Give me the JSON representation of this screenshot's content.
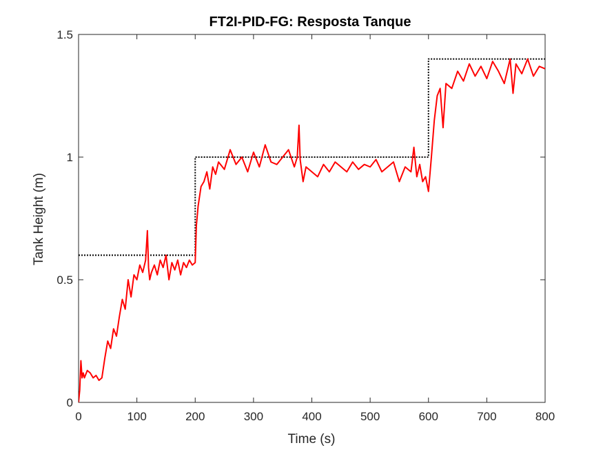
{
  "chart_data": {
    "type": "line",
    "title": "FT2I-PID-FG: Resposta Tanque",
    "xlabel": "Time (s)",
    "ylabel": "Tank Height (m)",
    "xlim": [
      0,
      800
    ],
    "ylim": [
      0,
      1.5
    ],
    "xticks": [
      0,
      100,
      200,
      300,
      400,
      500,
      600,
      700,
      800
    ],
    "xtick_labels": [
      "0",
      "100",
      "200",
      "300",
      "400",
      "500",
      "600",
      "700",
      "800"
    ],
    "yticks": [
      0,
      0.5,
      1,
      1.5
    ],
    "ytick_labels": [
      "0",
      "0.5",
      "1",
      "1.5"
    ],
    "grid": false,
    "legend": "none",
    "series": [
      {
        "style": "dotted",
        "color": "#000000",
        "x": [
          0,
          200,
          200,
          600,
          600,
          800
        ],
        "y": [
          0.6,
          0.6,
          1.0,
          1.0,
          1.4,
          1.4
        ]
      },
      {
        "style": "solid",
        "color": "#ff0000",
        "x": [
          0,
          2,
          4,
          6,
          8,
          10,
          15,
          20,
          25,
          30,
          35,
          40,
          45,
          50,
          55,
          60,
          65,
          70,
          75,
          80,
          85,
          90,
          95,
          100,
          105,
          110,
          115,
          118,
          120,
          122,
          125,
          130,
          135,
          140,
          145,
          150,
          155,
          160,
          165,
          170,
          175,
          180,
          185,
          190,
          195,
          200,
          202,
          205,
          210,
          215,
          220,
          225,
          230,
          235,
          240,
          250,
          260,
          270,
          280,
          290,
          300,
          310,
          320,
          330,
          340,
          350,
          360,
          370,
          375,
          378,
          380,
          385,
          390,
          400,
          410,
          420,
          430,
          440,
          450,
          460,
          470,
          480,
          490,
          500,
          510,
          520,
          530,
          540,
          550,
          560,
          570,
          575,
          580,
          585,
          590,
          595,
          600,
          605,
          610,
          615,
          620,
          625,
          630,
          640,
          650,
          660,
          670,
          680,
          690,
          700,
          710,
          720,
          730,
          740,
          745,
          750,
          760,
          770,
          780,
          790,
          800
        ],
        "y": [
          0.0,
          0.05,
          0.17,
          0.1,
          0.12,
          0.1,
          0.13,
          0.12,
          0.1,
          0.11,
          0.09,
          0.1,
          0.18,
          0.25,
          0.22,
          0.3,
          0.27,
          0.35,
          0.42,
          0.38,
          0.5,
          0.43,
          0.52,
          0.5,
          0.56,
          0.53,
          0.58,
          0.7,
          0.55,
          0.5,
          0.53,
          0.56,
          0.52,
          0.58,
          0.55,
          0.6,
          0.5,
          0.57,
          0.54,
          0.58,
          0.52,
          0.57,
          0.55,
          0.58,
          0.56,
          0.57,
          0.72,
          0.8,
          0.88,
          0.9,
          0.94,
          0.87,
          0.96,
          0.93,
          0.98,
          0.95,
          1.03,
          0.97,
          1.0,
          0.94,
          1.02,
          0.96,
          1.05,
          0.98,
          0.97,
          1.0,
          1.03,
          0.96,
          1.0,
          1.13,
          0.99,
          0.9,
          0.96,
          0.94,
          0.92,
          0.97,
          0.94,
          0.98,
          0.96,
          0.94,
          0.98,
          0.95,
          0.97,
          0.96,
          0.99,
          0.94,
          0.96,
          0.98,
          0.9,
          0.96,
          0.94,
          1.04,
          0.92,
          0.97,
          0.9,
          0.92,
          0.86,
          1.0,
          1.15,
          1.25,
          1.28,
          1.12,
          1.3,
          1.28,
          1.35,
          1.31,
          1.38,
          1.33,
          1.37,
          1.32,
          1.39,
          1.35,
          1.3,
          1.4,
          1.26,
          1.38,
          1.34,
          1.4,
          1.33,
          1.37,
          1.36
        ]
      }
    ]
  }
}
